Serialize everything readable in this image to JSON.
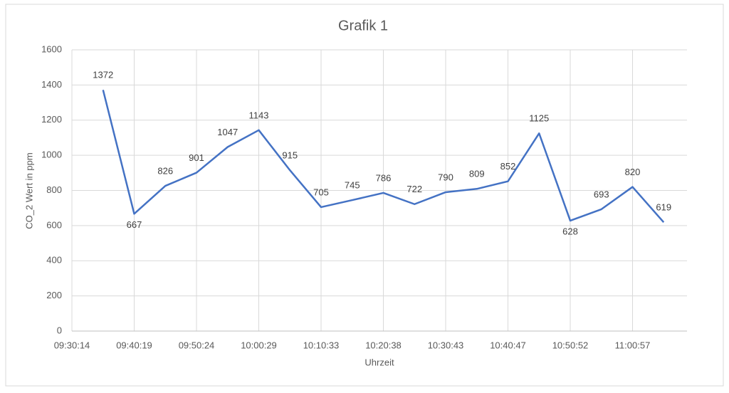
{
  "chart_data": {
    "type": "line",
    "title": "Grafik 1",
    "x_label": "Uhrzeit",
    "y_label": "CO_2 Wert in ppm",
    "categories": [
      "09:30:14",
      null,
      "09:40:19",
      null,
      "09:50:24",
      null,
      "10:00:29",
      null,
      "10:10:33",
      null,
      "10:20:38",
      null,
      "10:30:43",
      null,
      "10:40:47",
      null,
      "10:50:52",
      null,
      "11:00:57",
      null
    ],
    "series": [
      {
        "name": "CO_2 Wert in ppm",
        "color": "#4472c4",
        "values": [
          null,
          1372,
          667,
          826,
          901,
          1047,
          1143,
          915,
          705,
          745,
          786,
          722,
          790,
          809,
          852,
          1125,
          628,
          693,
          820,
          619
        ]
      }
    ],
    "ylim": [
      0,
      1600
    ],
    "yticks": [
      0,
      200,
      400,
      600,
      800,
      1000,
      1200,
      1400,
      1600
    ],
    "grid": true
  }
}
